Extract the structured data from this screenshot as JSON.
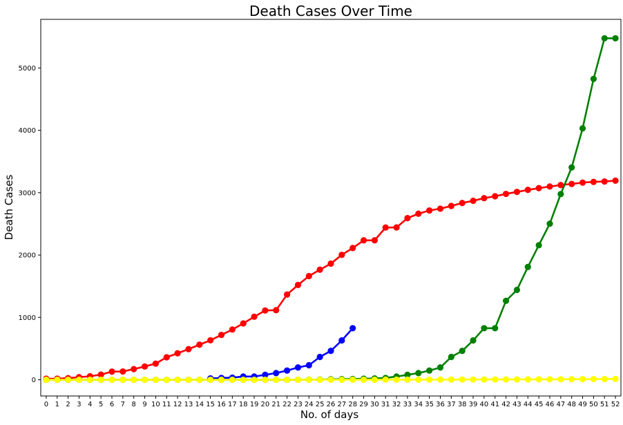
{
  "chart_data": {
    "type": "line",
    "title": "Death Cases Over Time",
    "xlabel": "No. of days",
    "ylabel": "Death Cases",
    "xlim": [
      -0.5,
      52.5
    ],
    "ylim": [
      -260,
      5780
    ],
    "yticks": [
      0,
      1000,
      2000,
      3000,
      4000,
      5000
    ],
    "categories": [
      0,
      1,
      2,
      3,
      4,
      5,
      6,
      7,
      8,
      9,
      10,
      11,
      12,
      13,
      14,
      15,
      16,
      17,
      18,
      19,
      20,
      21,
      22,
      23,
      24,
      25,
      26,
      27,
      28,
      29,
      30,
      31,
      32,
      33,
      34,
      35,
      36,
      37,
      38,
      39,
      40,
      41,
      42,
      43,
      44,
      45,
      46,
      47,
      48,
      49,
      50,
      51,
      52
    ],
    "grid": false,
    "legend": "none",
    "series": [
      {
        "color": "#ff0000",
        "x": [
          0,
          1,
          2,
          3,
          4,
          5,
          6,
          7,
          8,
          9,
          10,
          11,
          12,
          13,
          14,
          15,
          16,
          17,
          18,
          19,
          20,
          21,
          22,
          23,
          24,
          25,
          26,
          27,
          28,
          29,
          30,
          31,
          32,
          33,
          34,
          35,
          36,
          37,
          38,
          39,
          40,
          41,
          42,
          43,
          44,
          45,
          46,
          47,
          48,
          49,
          50,
          51,
          52
        ],
        "values": [
          17,
          18,
          26,
          42,
          56,
          82,
          131,
          133,
          171,
          213,
          259,
          361,
          425,
          491,
          563,
          633,
          719,
          805,
          904,
          1011,
          1111,
          1116,
          1367,
          1520,
          1663,
          1765,
          1863,
          2003,
          2113,
          2236,
          2236,
          2441,
          2443,
          2592,
          2663,
          2715,
          2744,
          2788,
          2835,
          2870,
          2912,
          2943,
          2981,
          3013,
          3045,
          3073,
          3099,
          3123,
          3140,
          3162,
          3173,
          3180,
          3193
        ]
      },
      {
        "color": "#0000ff",
        "x": [
          15,
          16,
          17,
          18,
          19,
          20,
          21,
          22,
          23,
          24,
          25,
          26,
          27,
          28
        ],
        "values": [
          21,
          29,
          34,
          52,
          52,
          79,
          107,
          148,
          197,
          233,
          366,
          463,
          631,
          827
        ]
      },
      {
        "color": "#008000",
        "x": [
          0,
          1,
          2,
          3,
          4,
          5,
          6,
          7,
          8,
          9,
          10,
          11,
          12,
          13,
          14,
          15,
          16,
          17,
          18,
          19,
          20,
          21,
          22,
          23,
          24,
          25,
          26,
          27,
          28,
          29,
          30,
          31,
          32,
          33,
          34,
          35,
          36,
          37,
          38,
          39,
          40,
          41,
          42,
          43,
          44,
          45,
          46,
          47,
          48,
          49,
          50,
          51,
          52
        ],
        "values": [
          0,
          0,
          0,
          0,
          0,
          0,
          0,
          0,
          0,
          0,
          0,
          0,
          0,
          0,
          0,
          0,
          0,
          0,
          0,
          0,
          0,
          0,
          0,
          1,
          2,
          3,
          7,
          10,
          12,
          17,
          21,
          29,
          52,
          79,
          107,
          148,
          197,
          366,
          463,
          631,
          827,
          827,
          1266,
          1441,
          1809,
          2158,
          2503,
          2978,
          3405,
          4032,
          4825,
          5476,
          5476
        ]
      },
      {
        "color": "#ffff00",
        "x": [
          0,
          1,
          2,
          3,
          4,
          5,
          6,
          7,
          8,
          9,
          10,
          11,
          12,
          13,
          14,
          15,
          16,
          17,
          18,
          19,
          20,
          21,
          22,
          23,
          24,
          25,
          26,
          27,
          28,
          29,
          30,
          31,
          32,
          33,
          34,
          35,
          36,
          37,
          38,
          39,
          40,
          41,
          42,
          43,
          44,
          45,
          46,
          47,
          48,
          49,
          50,
          51,
          52
        ],
        "values": [
          0,
          0,
          0,
          0,
          0,
          0,
          0,
          0,
          0,
          0,
          0,
          0,
          0,
          0,
          0,
          0,
          0,
          0,
          0,
          0,
          0,
          1,
          1,
          1,
          1,
          1,
          1,
          1,
          1,
          1,
          1,
          2,
          2,
          2,
          2,
          2,
          3,
          3,
          4,
          4,
          5,
          5,
          5,
          6,
          6,
          7,
          8,
          8,
          9,
          10,
          11,
          12,
          13
        ]
      }
    ]
  }
}
